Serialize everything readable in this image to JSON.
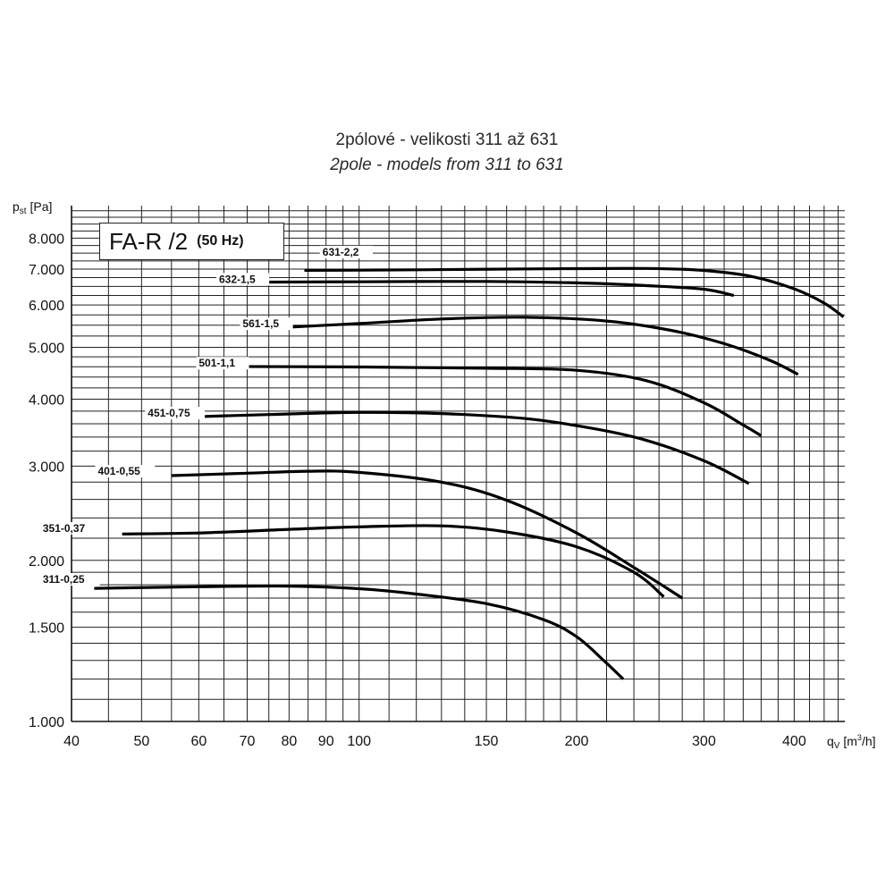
{
  "chart_data": {
    "type": "line",
    "title": "2pólové - velikosti 311 až 631",
    "subtitle": "2pole - models from 311 to 631",
    "model": "FA-R /2",
    "frequency": "(50 Hz)",
    "ylabel": {
      "p": "p",
      "sub": "st",
      "unit": "[Pa]"
    },
    "xlabel": {
      "q": "q",
      "sub": "V",
      "unit_pre": "[m",
      "unit_sup": "3",
      "unit_post": "/h]"
    },
    "x_scale": "log",
    "y_scale": "log",
    "xlim": [
      40,
      470
    ],
    "ylim": [
      1000,
      9200
    ],
    "grid": true,
    "x_ticks": [
      {
        "v": 40,
        "label": "40"
      },
      {
        "v": 50,
        "label": "50"
      },
      {
        "v": 60,
        "label": "60"
      },
      {
        "v": 70,
        "label": "70"
      },
      {
        "v": 80,
        "label": "80"
      },
      {
        "v": 90,
        "label": "90"
      },
      {
        "v": 100,
        "label": "100"
      },
      {
        "v": 150,
        "label": "150"
      },
      {
        "v": 200,
        "label": "200"
      },
      {
        "v": 300,
        "label": "300"
      },
      {
        "v": 400,
        "label": "400"
      }
    ],
    "y_ticks": [
      {
        "v": 1000,
        "label": "1.000"
      },
      {
        "v": 1500,
        "label": "1.500"
      },
      {
        "v": 2000,
        "label": "2.000"
      },
      {
        "v": 3000,
        "label": "3.000"
      },
      {
        "v": 4000,
        "label": "4.000"
      },
      {
        "v": 5000,
        "label": "5.000"
      },
      {
        "v": 6000,
        "label": "6.000"
      },
      {
        "v": 7000,
        "label": "7.000"
      },
      {
        "v": 8000,
        "label": "8.000"
      }
    ],
    "series": [
      {
        "name": "311-0,25",
        "label_at": [
          36.5,
          1815
        ],
        "points": [
          [
            43,
            1773
          ],
          [
            60,
            1785
          ],
          [
            80,
            1790
          ],
          [
            100,
            1770
          ],
          [
            120,
            1730
          ],
          [
            150,
            1660
          ],
          [
            180,
            1550
          ],
          [
            200,
            1440
          ],
          [
            218,
            1300
          ],
          [
            232,
            1200
          ]
        ]
      },
      {
        "name": "351-0,37",
        "label_at": [
          36.5,
          2260
        ],
        "points": [
          [
            47,
            2240
          ],
          [
            60,
            2250
          ],
          [
            80,
            2285
          ],
          [
            100,
            2310
          ],
          [
            130,
            2320
          ],
          [
            160,
            2260
          ],
          [
            200,
            2120
          ],
          [
            240,
            1900
          ],
          [
            264,
            1710
          ]
        ]
      },
      {
        "name": "401-0,55",
        "label_at": [
          43.5,
          2890
        ],
        "points": [
          [
            55,
            2880
          ],
          [
            70,
            2910
          ],
          [
            85,
            2935
          ],
          [
            100,
            2920
          ],
          [
            130,
            2800
          ],
          [
            160,
            2590
          ],
          [
            200,
            2250
          ],
          [
            240,
            1940
          ],
          [
            280,
            1700
          ]
        ]
      },
      {
        "name": "451-0,75",
        "label_at": [
          51,
          3710
        ],
        "points": [
          [
            56,
            3700
          ],
          [
            75,
            3745
          ],
          [
            100,
            3780
          ],
          [
            130,
            3760
          ],
          [
            170,
            3680
          ],
          [
            210,
            3530
          ],
          [
            250,
            3350
          ],
          [
            300,
            3070
          ],
          [
            340,
            2820
          ],
          [
            346,
            2780
          ]
        ]
      },
      {
        "name": "501-1,1",
        "label_at": [
          60,
          4600
        ],
        "points": [
          [
            63,
            4605
          ],
          [
            100,
            4595
          ],
          [
            150,
            4570
          ],
          [
            200,
            4530
          ],
          [
            250,
            4330
          ],
          [
            300,
            3940
          ],
          [
            340,
            3580
          ],
          [
            360,
            3420
          ]
        ]
      },
      {
        "name": "561-1,5",
        "label_at": [
          69,
          5450
        ],
        "points": [
          [
            75,
            5430
          ],
          [
            100,
            5540
          ],
          [
            130,
            5650
          ],
          [
            170,
            5690
          ],
          [
            220,
            5600
          ],
          [
            270,
            5380
          ],
          [
            320,
            5080
          ],
          [
            370,
            4730
          ],
          [
            405,
            4450
          ]
        ]
      },
      {
        "name": "632-1,5",
        "label_at": [
          64,
          6600
        ],
        "points": [
          [
            72,
            6620
          ],
          [
            100,
            6630
          ],
          [
            150,
            6640
          ],
          [
            200,
            6600
          ],
          [
            250,
            6520
          ],
          [
            300,
            6420
          ],
          [
            330,
            6250
          ]
        ]
      },
      {
        "name": "631-2,2",
        "label_at": [
          89,
          7420
        ],
        "points": [
          [
            84,
            6965
          ],
          [
            120,
            6980
          ],
          [
            180,
            7010
          ],
          [
            250,
            7020
          ],
          [
            300,
            6960
          ],
          [
            350,
            6780
          ],
          [
            400,
            6430
          ],
          [
            440,
            6050
          ],
          [
            468,
            5700
          ]
        ]
      }
    ]
  }
}
